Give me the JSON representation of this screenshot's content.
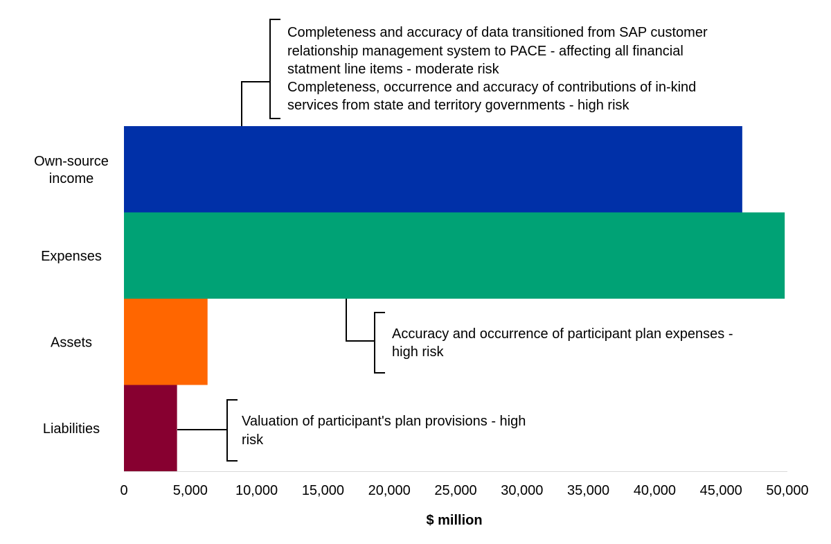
{
  "chart_data": {
    "type": "bar",
    "orientation": "horizontal",
    "title": "",
    "xlabel": "$ million",
    "ylabel": "",
    "xlim": [
      0,
      50000
    ],
    "x_ticks": [
      "0",
      "5,000",
      "10,000",
      "15,000",
      "20,000",
      "25,000",
      "30,000",
      "35,000",
      "40,000",
      "45,000",
      "50,000"
    ],
    "grid": false,
    "legend": "none",
    "categories": [
      {
        "label_lines": [
          "Own-source",
          "income"
        ],
        "value": 46600,
        "color": "#0030A8"
      },
      {
        "label_lines": [
          "Expenses"
        ],
        "value": 49800,
        "color": "#00A275"
      },
      {
        "label_lines": [
          "Assets"
        ],
        "value": 6300,
        "color": "#FF6600"
      },
      {
        "label_lines": [
          "Liabilities"
        ],
        "value": 4000,
        "color": "#870030"
      }
    ],
    "annotations": [
      {
        "category": "Own-source income",
        "lines": [
          "Completeness and accuracy of data transitioned from SAP customer",
          "relationship management system to PACE - affecting all financial",
          "statment line items - moderate risk",
          "Completeness, occurrence and accuracy of contributions of in-kind",
          "services from state and territory governments - high risk"
        ]
      },
      {
        "category": "Expenses",
        "lines": [
          "Accuracy and occurrence of participant plan expenses -",
          "high risk"
        ]
      },
      {
        "category": "Liabilities",
        "lines": [
          "Valuation of participant's plan provisions - high",
          "risk"
        ]
      }
    ]
  }
}
